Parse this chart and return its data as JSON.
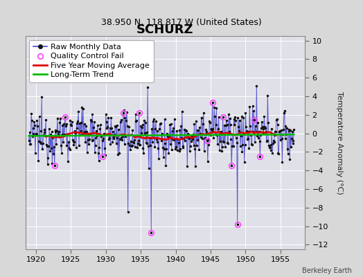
{
  "title": "SCHURZ",
  "subtitle": "38.950 N, 118.817 W (United States)",
  "ylabel": "Temperature Anomaly (°C)",
  "credit": "Berkeley Earth",
  "xlim": [
    1918.5,
    1958.5
  ],
  "ylim": [
    -12.5,
    10.5
  ],
  "xticks": [
    1920,
    1925,
    1930,
    1935,
    1940,
    1945,
    1950,
    1955
  ],
  "yticks": [
    -12,
    -10,
    -8,
    -6,
    -4,
    -2,
    0,
    2,
    4,
    6,
    8,
    10
  ],
  "bg_color": "#d8d8d8",
  "plot_bg_color": "#e0e0e8",
  "raw_line_color": "#4444cc",
  "raw_dot_color": "#111111",
  "moving_avg_color": "#dd0000",
  "trend_color": "#00bb00",
  "qc_color": "#ff44ff",
  "title_fontsize": 13,
  "subtitle_fontsize": 9,
  "tick_fontsize": 8,
  "ylabel_fontsize": 8,
  "legend_fontsize": 8,
  "seed": 12345,
  "n_years": 38,
  "start_year": 1919,
  "months_per_year": 12
}
